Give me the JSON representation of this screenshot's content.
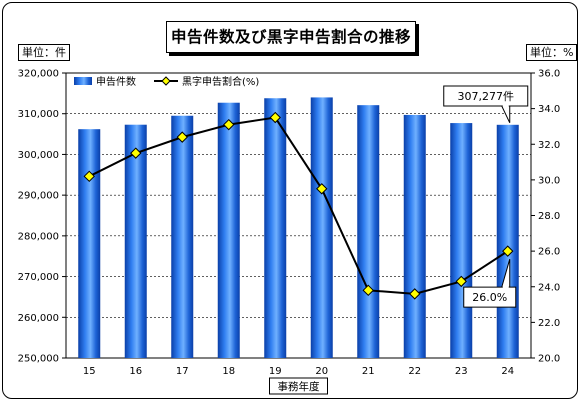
{
  "title": "申告件数及び黒字申告割合の推移",
  "y_left_unit": "単位：件",
  "y_right_unit": "単位：%",
  "chart_data": {
    "type": "bar",
    "title": "申告件数及び黒字申告割合の推移",
    "xlabel": "事務年度",
    "categories": [
      "15",
      "16",
      "17",
      "18",
      "19",
      "20",
      "21",
      "22",
      "23",
      "24"
    ],
    "series": [
      {
        "name": "申告件数",
        "type": "bar",
        "axis": "left",
        "values": [
          306200,
          307300,
          309500,
          312700,
          313800,
          314000,
          312100,
          309700,
          307700,
          307277
        ],
        "color": "#1e63d6"
      },
      {
        "name": "黒字申告割合(%)",
        "type": "line",
        "axis": "right",
        "values": [
          30.2,
          31.5,
          32.4,
          33.1,
          33.5,
          29.5,
          23.8,
          23.6,
          24.3,
          26.0
        ],
        "color": "#000000",
        "marker_color": "#ffff00"
      }
    ],
    "y_left": {
      "min": 250000,
      "max": 320000,
      "step": 10000,
      "ticks": [
        "250,000",
        "260,000",
        "270,000",
        "280,000",
        "290,000",
        "300,000",
        "310,000",
        "320,000"
      ]
    },
    "y_right": {
      "min": 20,
      "max": 36,
      "step": 2,
      "ticks": [
        "20.0",
        "22.0",
        "24.0",
        "26.0",
        "28.0",
        "30.0",
        "32.0",
        "34.0",
        "36.0"
      ]
    },
    "legend_position": "top-left",
    "annotations": [
      {
        "text": "307,277件",
        "series": 0,
        "index": 9
      },
      {
        "text": "26.0%",
        "series": 1,
        "index": 9
      }
    ]
  }
}
